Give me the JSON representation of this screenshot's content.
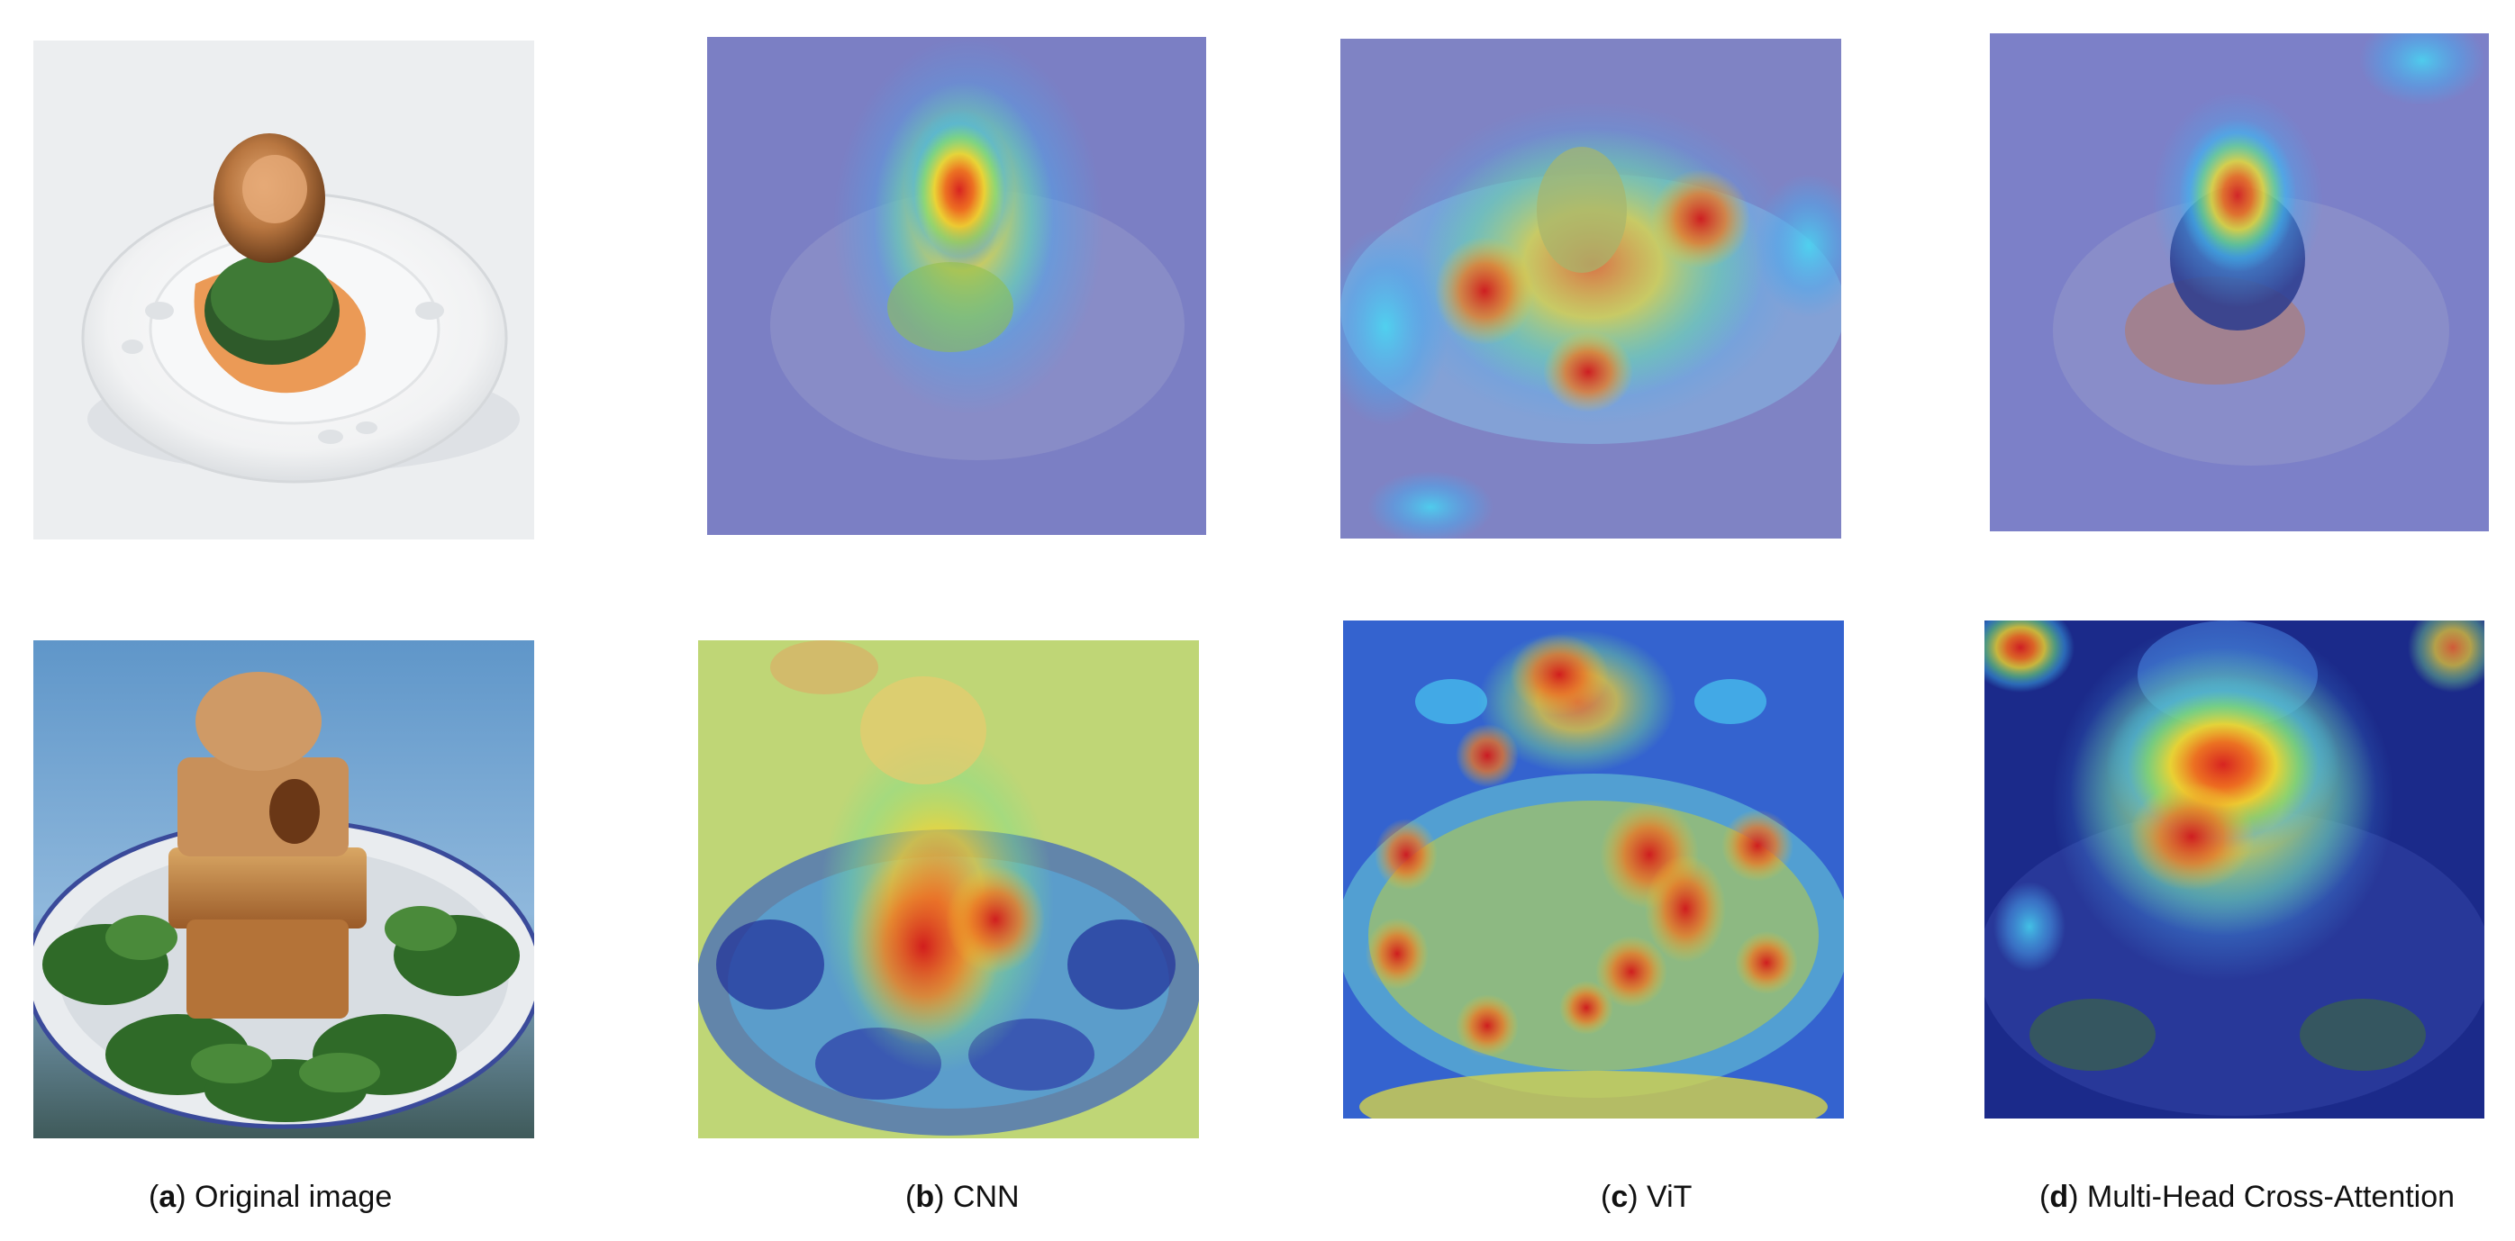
{
  "captions": [
    {
      "letter": "a",
      "text": "Original image"
    },
    {
      "letter": "b",
      "text": "CNN"
    },
    {
      "letter": "c",
      "text": "ViT"
    },
    {
      "letter": "d",
      "text": "Multi-Head Cross-Attention"
    }
  ],
  "rows": [
    {
      "subject": "abalone-on-greens-plate"
    },
    {
      "subject": "braised-pork-stack-plate"
    }
  ],
  "columns": [
    "original",
    "cnn-heatmap",
    "vit-heatmap",
    "cross-attention-heatmap"
  ]
}
